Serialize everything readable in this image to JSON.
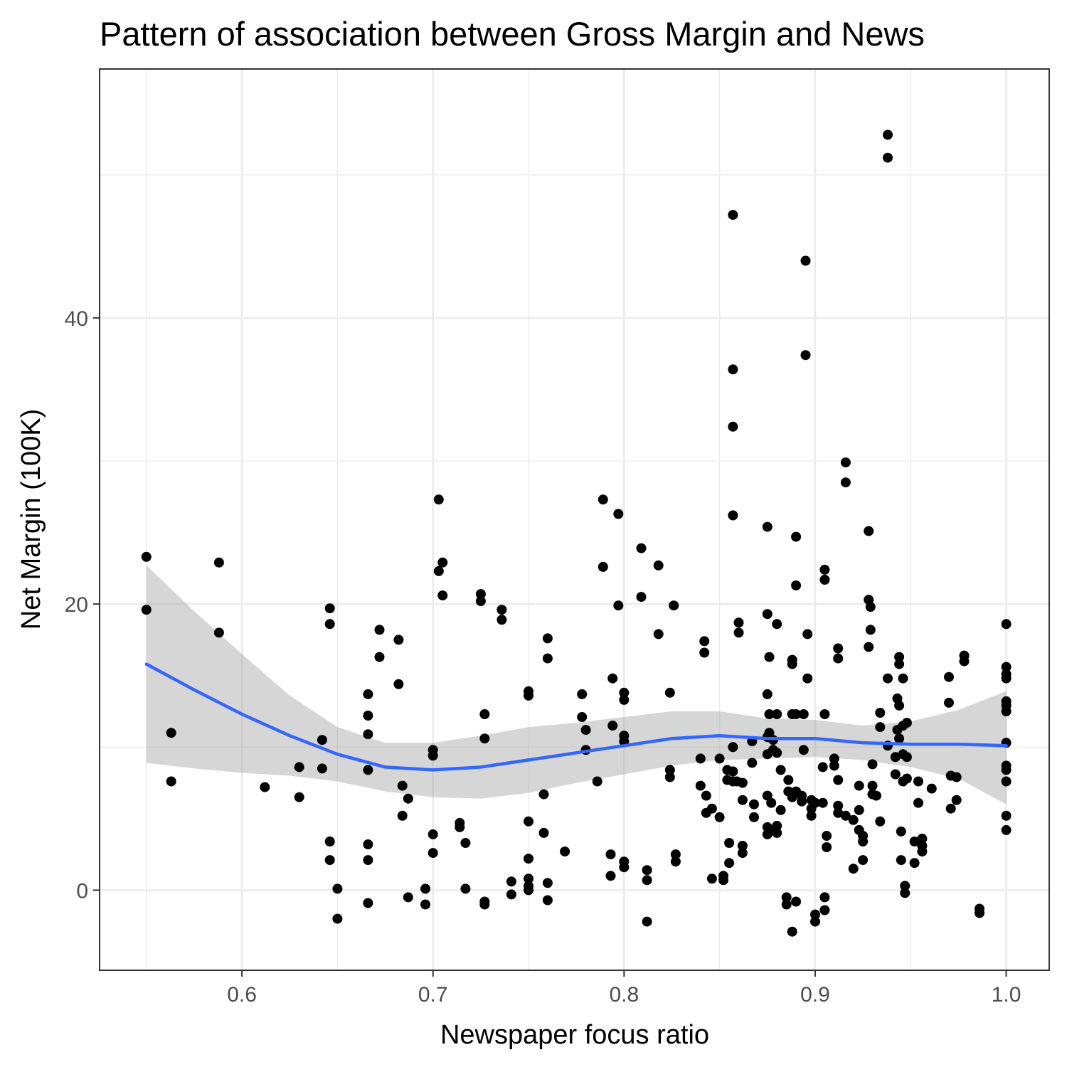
{
  "chart_data": {
    "type": "scatter",
    "title": "Pattern of association between Gross Margin and News",
    "xlabel": "Newspaper focus ratio",
    "ylabel": "Net Margin (100K)",
    "xlim": [
      0.5255,
      1.0225
    ],
    "ylim": [
      -5.6,
      57.4
    ],
    "x_ticks": [
      0.6,
      0.7,
      0.8,
      0.9,
      1.0
    ],
    "x_tick_labels": [
      "0.6",
      "0.7",
      "0.8",
      "0.9",
      "1.0"
    ],
    "y_ticks": [
      0,
      20,
      40
    ],
    "y_tick_labels": [
      "0",
      "20",
      "40"
    ],
    "grid": true,
    "legend": "none",
    "colors": {
      "points": "#000000",
      "smooth_line": "#3366ff",
      "confidence_band": "#999999",
      "panel_border": "#333333",
      "grid": "#ebebeb",
      "tick_label": "#4d4d4d"
    },
    "series": [
      {
        "type": "scatter",
        "points": [
          [
            0.55,
            23.3
          ],
          [
            0.55,
            19.6
          ],
          [
            0.563,
            11.0
          ],
          [
            0.563,
            7.6
          ],
          [
            0.588,
            22.9
          ],
          [
            0.588,
            18.0
          ],
          [
            0.612,
            7.2
          ],
          [
            0.63,
            8.6
          ],
          [
            0.63,
            6.5
          ],
          [
            0.642,
            10.5
          ],
          [
            0.642,
            8.5
          ],
          [
            0.646,
            19.7
          ],
          [
            0.646,
            18.6
          ],
          [
            0.646,
            3.4
          ],
          [
            0.646,
            2.1
          ],
          [
            0.65,
            0.1
          ],
          [
            0.65,
            -2.0
          ],
          [
            0.666,
            13.7
          ],
          [
            0.666,
            12.2
          ],
          [
            0.666,
            10.9
          ],
          [
            0.666,
            8.4
          ],
          [
            0.666,
            3.2
          ],
          [
            0.666,
            2.1
          ],
          [
            0.666,
            -0.9
          ],
          [
            0.672,
            18.2
          ],
          [
            0.672,
            16.3
          ],
          [
            0.682,
            17.5
          ],
          [
            0.682,
            14.4
          ],
          [
            0.684,
            7.3
          ],
          [
            0.684,
            5.2
          ],
          [
            0.687,
            6.4
          ],
          [
            0.687,
            -0.5
          ],
          [
            0.696,
            0.1
          ],
          [
            0.696,
            -1.0
          ],
          [
            0.7,
            9.8
          ],
          [
            0.7,
            9.4
          ],
          [
            0.7,
            3.9
          ],
          [
            0.7,
            2.6
          ],
          [
            0.703,
            27.3
          ],
          [
            0.703,
            22.3
          ],
          [
            0.705,
            22.9
          ],
          [
            0.705,
            20.6
          ],
          [
            0.714,
            4.7
          ],
          [
            0.714,
            4.4
          ],
          [
            0.717,
            3.3
          ],
          [
            0.717,
            0.1
          ],
          [
            0.725,
            20.7
          ],
          [
            0.725,
            20.2
          ],
          [
            0.727,
            12.3
          ],
          [
            0.727,
            10.6
          ],
          [
            0.727,
            -0.8
          ],
          [
            0.727,
            -1.0
          ],
          [
            0.736,
            19.6
          ],
          [
            0.736,
            18.9
          ],
          [
            0.741,
            0.6
          ],
          [
            0.741,
            -0.3
          ],
          [
            0.75,
            13.9
          ],
          [
            0.75,
            13.6
          ],
          [
            0.75,
            4.8
          ],
          [
            0.75,
            2.2
          ],
          [
            0.75,
            0.8
          ],
          [
            0.75,
            0.3
          ],
          [
            0.75,
            0.0
          ],
          [
            0.758,
            6.7
          ],
          [
            0.758,
            4.0
          ],
          [
            0.76,
            17.6
          ],
          [
            0.76,
            16.2
          ],
          [
            0.76,
            0.5
          ],
          [
            0.76,
            -0.7
          ],
          [
            0.769,
            2.7
          ],
          [
            0.778,
            13.7
          ],
          [
            0.778,
            12.1
          ],
          [
            0.78,
            11.2
          ],
          [
            0.78,
            9.8
          ],
          [
            0.786,
            7.6
          ],
          [
            0.789,
            27.3
          ],
          [
            0.789,
            22.6
          ],
          [
            0.793,
            2.5
          ],
          [
            0.793,
            1.0
          ],
          [
            0.794,
            14.8
          ],
          [
            0.794,
            11.5
          ],
          [
            0.797,
            26.3
          ],
          [
            0.797,
            19.9
          ],
          [
            0.8,
            13.8
          ],
          [
            0.8,
            13.3
          ],
          [
            0.8,
            10.8
          ],
          [
            0.8,
            10.4
          ],
          [
            0.8,
            2.0
          ],
          [
            0.8,
            1.6
          ],
          [
            0.809,
            23.9
          ],
          [
            0.809,
            20.5
          ],
          [
            0.812,
            1.4
          ],
          [
            0.812,
            0.7
          ],
          [
            0.812,
            -2.2
          ],
          [
            0.818,
            22.7
          ],
          [
            0.818,
            17.9
          ],
          [
            0.824,
            13.8
          ],
          [
            0.824,
            8.4
          ],
          [
            0.824,
            7.9
          ],
          [
            0.826,
            19.9
          ],
          [
            0.827,
            2.5
          ],
          [
            0.827,
            2.0
          ],
          [
            0.84,
            9.2
          ],
          [
            0.84,
            7.3
          ],
          [
            0.842,
            17.4
          ],
          [
            0.842,
            16.6
          ],
          [
            0.843,
            6.6
          ],
          [
            0.843,
            5.4
          ],
          [
            0.846,
            5.7
          ],
          [
            0.846,
            0.8
          ],
          [
            0.85,
            9.2
          ],
          [
            0.85,
            5.1
          ],
          [
            0.852,
            1.0
          ],
          [
            0.852,
            0.7
          ],
          [
            0.854,
            8.4
          ],
          [
            0.854,
            7.7
          ],
          [
            0.855,
            3.3
          ],
          [
            0.855,
            1.9
          ],
          [
            0.857,
            8.3
          ],
          [
            0.857,
            7.6
          ],
          [
            0.857,
            47.2
          ],
          [
            0.857,
            36.4
          ],
          [
            0.857,
            32.4
          ],
          [
            0.857,
            26.2
          ],
          [
            0.857,
            10.0
          ],
          [
            0.859,
            7.6
          ],
          [
            0.86,
            18.7
          ],
          [
            0.86,
            18.0
          ],
          [
            0.862,
            7.5
          ],
          [
            0.862,
            6.3
          ],
          [
            0.862,
            3.1
          ],
          [
            0.862,
            2.6
          ],
          [
            0.867,
            10.4
          ],
          [
            0.867,
            8.9
          ],
          [
            0.868,
            6.0
          ],
          [
            0.868,
            5.1
          ],
          [
            0.875,
            25.4
          ],
          [
            0.875,
            19.3
          ],
          [
            0.875,
            13.7
          ],
          [
            0.875,
            10.7
          ],
          [
            0.875,
            9.5
          ],
          [
            0.875,
            6.6
          ],
          [
            0.875,
            4.4
          ],
          [
            0.875,
            3.9
          ],
          [
            0.876,
            16.3
          ],
          [
            0.876,
            12.3
          ],
          [
            0.876,
            11.0
          ],
          [
            0.877,
            6.1
          ],
          [
            0.877,
            4.2
          ],
          [
            0.878,
            10.5
          ],
          [
            0.878,
            9.8
          ],
          [
            0.88,
            18.6
          ],
          [
            0.88,
            12.3
          ],
          [
            0.88,
            9.6
          ],
          [
            0.88,
            4.5
          ],
          [
            0.88,
            4.0
          ],
          [
            0.882,
            8.4
          ],
          [
            0.882,
            5.6
          ],
          [
            0.885,
            -0.5
          ],
          [
            0.885,
            -1.0
          ],
          [
            0.886,
            7.7
          ],
          [
            0.886,
            6.9
          ],
          [
            0.888,
            16.1
          ],
          [
            0.888,
            15.8
          ],
          [
            0.888,
            12.3
          ],
          [
            0.888,
            6.5
          ],
          [
            0.888,
            -2.9
          ],
          [
            0.89,
            24.7
          ],
          [
            0.89,
            21.3
          ],
          [
            0.89,
            12.3
          ],
          [
            0.89,
            6.9
          ],
          [
            0.89,
            -0.8
          ],
          [
            0.893,
            6.6
          ],
          [
            0.893,
            6.2
          ],
          [
            0.894,
            12.3
          ],
          [
            0.894,
            9.8
          ],
          [
            0.895,
            44.0
          ],
          [
            0.895,
            37.4
          ],
          [
            0.896,
            17.9
          ],
          [
            0.896,
            14.8
          ],
          [
            0.898,
            6.3
          ],
          [
            0.898,
            5.2
          ],
          [
            0.898,
            5.7
          ],
          [
            0.9,
            6.1
          ],
          [
            0.9,
            -1.7
          ],
          [
            0.9,
            -2.2
          ],
          [
            0.904,
            8.6
          ],
          [
            0.904,
            6.1
          ],
          [
            0.905,
            22.4
          ],
          [
            0.905,
            21.7
          ],
          [
            0.905,
            12.3
          ],
          [
            0.905,
            -0.5
          ],
          [
            0.905,
            -1.4
          ],
          [
            0.906,
            3.8
          ],
          [
            0.906,
            3.0
          ],
          [
            0.91,
            8.7
          ],
          [
            0.91,
            9.2
          ],
          [
            0.912,
            16.9
          ],
          [
            0.912,
            16.2
          ],
          [
            0.912,
            7.7
          ],
          [
            0.912,
            5.9
          ],
          [
            0.912,
            5.4
          ],
          [
            0.916,
            29.9
          ],
          [
            0.916,
            28.5
          ],
          [
            0.916,
            5.2
          ],
          [
            0.92,
            4.9
          ],
          [
            0.92,
            1.5
          ],
          [
            0.923,
            7.3
          ],
          [
            0.923,
            5.6
          ],
          [
            0.923,
            4.2
          ],
          [
            0.925,
            3.8
          ],
          [
            0.925,
            3.4
          ],
          [
            0.925,
            2.1
          ],
          [
            0.928,
            25.1
          ],
          [
            0.928,
            20.3
          ],
          [
            0.928,
            17.0
          ],
          [
            0.929,
            19.8
          ],
          [
            0.929,
            18.2
          ],
          [
            0.93,
            8.8
          ],
          [
            0.93,
            7.3
          ],
          [
            0.93,
            6.7
          ],
          [
            0.932,
            6.6
          ],
          [
            0.934,
            4.8
          ],
          [
            0.934,
            12.4
          ],
          [
            0.934,
            11.4
          ],
          [
            0.938,
            52.8
          ],
          [
            0.938,
            51.2
          ],
          [
            0.938,
            14.8
          ],
          [
            0.938,
            10.1
          ],
          [
            0.942,
            9.3
          ],
          [
            0.942,
            8.1
          ],
          [
            0.943,
            13.4
          ],
          [
            0.943,
            11.2
          ],
          [
            0.944,
            12.9
          ],
          [
            0.944,
            10.6
          ],
          [
            0.944,
            15.8
          ],
          [
            0.944,
            16.3
          ],
          [
            0.945,
            4.1
          ],
          [
            0.945,
            2.1
          ],
          [
            0.946,
            14.8
          ],
          [
            0.946,
            11.5
          ],
          [
            0.946,
            9.5
          ],
          [
            0.946,
            7.6
          ],
          [
            0.947,
            0.3
          ],
          [
            0.947,
            -0.2
          ],
          [
            0.948,
            11.7
          ],
          [
            0.948,
            9.3
          ],
          [
            0.948,
            7.8
          ],
          [
            0.952,
            3.4
          ],
          [
            0.952,
            1.9
          ],
          [
            0.954,
            7.6
          ],
          [
            0.954,
            6.1
          ],
          [
            0.956,
            3.6
          ],
          [
            0.956,
            3.1
          ],
          [
            0.956,
            2.7
          ],
          [
            0.961,
            7.1
          ],
          [
            0.97,
            14.9
          ],
          [
            0.97,
            13.1
          ],
          [
            0.971,
            8.0
          ],
          [
            0.971,
            5.7
          ],
          [
            0.974,
            7.9
          ],
          [
            0.974,
            6.3
          ],
          [
            0.978,
            16.4
          ],
          [
            0.978,
            16.0
          ],
          [
            0.986,
            -1.3
          ],
          [
            0.986,
            -1.6
          ],
          [
            1.0,
            18.6
          ],
          [
            1.0,
            15.6
          ],
          [
            1.0,
            15.1
          ],
          [
            1.0,
            14.8
          ],
          [
            1.0,
            13.2
          ],
          [
            1.0,
            12.9
          ],
          [
            1.0,
            12.5
          ],
          [
            1.0,
            10.3
          ],
          [
            1.0,
            8.7
          ],
          [
            1.0,
            8.4
          ],
          [
            1.0,
            7.6
          ],
          [
            1.0,
            5.2
          ],
          [
            1.0,
            4.2
          ]
        ]
      },
      {
        "type": "smooth",
        "x": [
          0.55,
          0.575,
          0.6,
          0.625,
          0.65,
          0.675,
          0.7,
          0.725,
          0.75,
          0.775,
          0.8,
          0.825,
          0.85,
          0.875,
          0.9,
          0.925,
          0.95,
          0.975,
          1.0
        ],
        "y": [
          15.8,
          14.0,
          12.3,
          10.8,
          9.5,
          8.6,
          8.4,
          8.6,
          9.1,
          9.6,
          10.1,
          10.6,
          10.8,
          10.6,
          10.6,
          10.3,
          10.2,
          10.2,
          10.1
        ],
        "lower": [
          8.9,
          8.5,
          8.2,
          8.0,
          7.6,
          6.9,
          6.5,
          6.4,
          6.8,
          7.5,
          8.1,
          8.7,
          9.1,
          9.2,
          9.3,
          9.1,
          8.6,
          7.8,
          6.0
        ],
        "upper": [
          22.7,
          19.5,
          16.5,
          13.6,
          11.4,
          10.3,
          10.3,
          10.8,
          11.4,
          11.7,
          12.1,
          12.5,
          12.5,
          12.0,
          11.9,
          11.5,
          11.8,
          12.6,
          13.9
        ]
      }
    ]
  }
}
